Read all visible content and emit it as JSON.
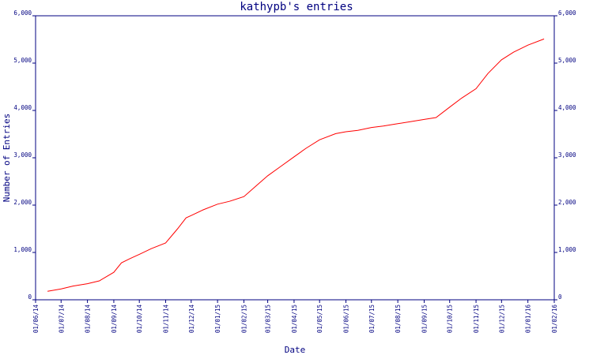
{
  "chart_data": {
    "type": "line",
    "title": "kathypb's entries",
    "xlabel": "Date",
    "ylabel": "Number of Entries",
    "x_tick_labels": [
      "01/06/14",
      "01/07/14",
      "01/08/14",
      "01/09/14",
      "01/10/14",
      "01/11/14",
      "01/12/14",
      "01/01/15",
      "01/02/15",
      "01/03/15",
      "01/04/15",
      "01/05/15",
      "01/06/15",
      "01/07/15",
      "01/08/15",
      "01/09/15",
      "01/10/15",
      "01/11/15",
      "01/12/15",
      "01/01/16",
      "01/02/16"
    ],
    "y_tick_labels": [
      "0",
      "1,000",
      "2,000",
      "3,000",
      "4,000",
      "5,000",
      "6,000"
    ],
    "y_ticks": [
      0,
      1000,
      2000,
      3000,
      4000,
      5000,
      6000
    ],
    "ylim": [
      0,
      6000
    ],
    "xlim": [
      "2014-06-01",
      "2016-02-01"
    ],
    "line_color": "#ff0000",
    "axis_color": "#000080",
    "grid": false,
    "series": [
      {
        "x": [
          "2014-06-15",
          "2014-07-01",
          "2014-07-15",
          "2014-08-01",
          "2014-08-15",
          "2014-09-01",
          "2014-09-10",
          "2014-09-20",
          "2014-10-01",
          "2014-10-15",
          "2014-11-01",
          "2014-11-15",
          "2014-11-25",
          "2014-12-01",
          "2014-12-15",
          "2015-01-01",
          "2015-01-15",
          "2015-02-01",
          "2015-02-15",
          "2015-03-01",
          "2015-03-15",
          "2015-04-01",
          "2015-04-15",
          "2015-05-01",
          "2015-05-20",
          "2015-06-01",
          "2015-06-15",
          "2015-07-01",
          "2015-07-15",
          "2015-08-01",
          "2015-08-15",
          "2015-09-01",
          "2015-09-15",
          "2015-10-01",
          "2015-10-15",
          "2015-11-01",
          "2015-11-15",
          "2015-12-01",
          "2015-12-15",
          "2016-01-01",
          "2016-01-20"
        ],
        "y": [
          180,
          230,
          290,
          340,
          400,
          580,
          780,
          870,
          960,
          1080,
          1200,
          1500,
          1730,
          1780,
          1900,
          2020,
          2080,
          2180,
          2400,
          2620,
          2800,
          3020,
          3200,
          3380,
          3510,
          3550,
          3580,
          3640,
          3670,
          3720,
          3760,
          3810,
          3850,
          4070,
          4260,
          4460,
          4780,
          5070,
          5230,
          5380,
          5510
        ]
      }
    ]
  }
}
